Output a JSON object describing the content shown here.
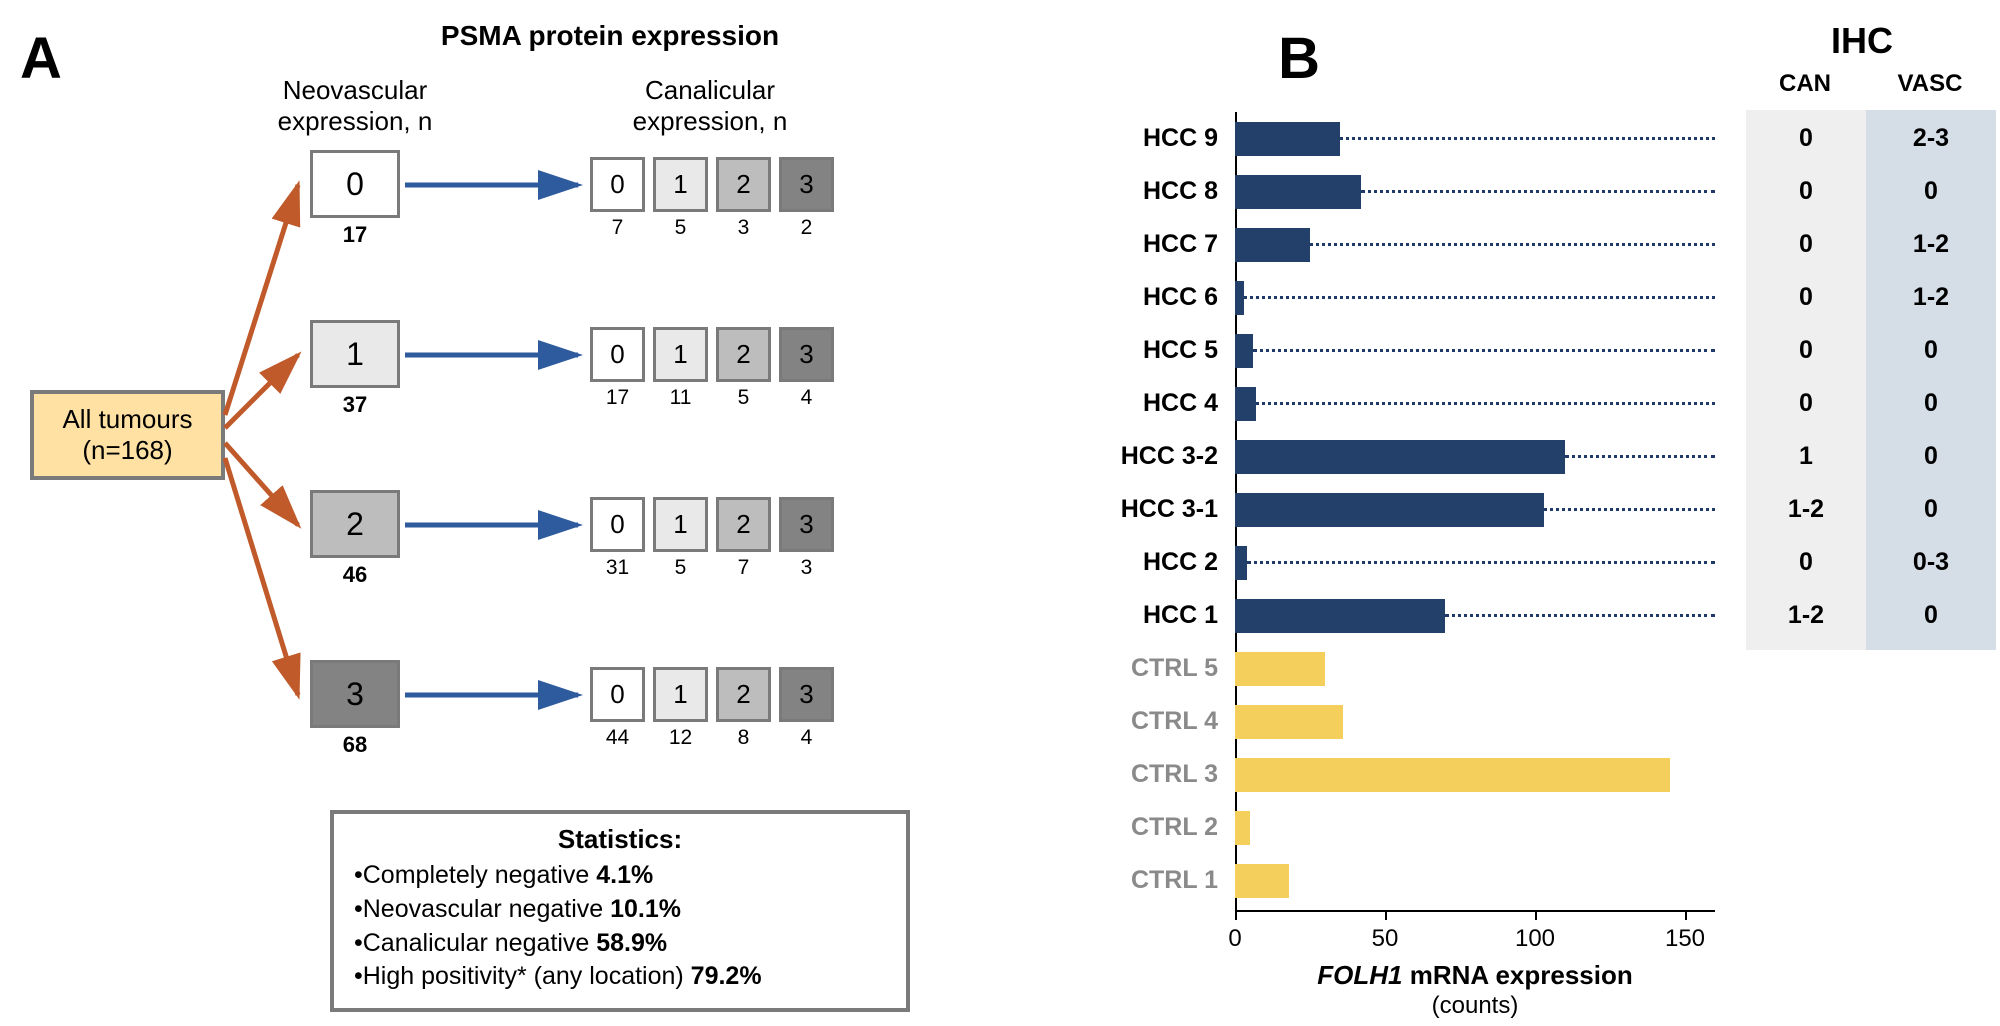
{
  "panelA": {
    "label": "A",
    "title": "PSMA protein expression",
    "neovascular_label": "Neovascular\nexpression, n",
    "canalicular_label": "Canalicular\nexpression, n",
    "root": {
      "line1": "All tumours",
      "line2": "(n=168)"
    },
    "score_colors": [
      "#ffffff",
      "#e9e9e9",
      "#bdbdbd",
      "#838383"
    ],
    "neo_groups": [
      {
        "score": "0",
        "n": "17",
        "can_counts": [
          "7",
          "5",
          "3",
          "2"
        ]
      },
      {
        "score": "1",
        "n": "37",
        "can_counts": [
          "17",
          "11",
          "5",
          "4"
        ]
      },
      {
        "score": "2",
        "n": "46",
        "can_counts": [
          "31",
          "5",
          "7",
          "3"
        ]
      },
      {
        "score": "3",
        "n": "68",
        "can_counts": [
          "44",
          "12",
          "8",
          "4"
        ]
      }
    ],
    "arrow_colors": {
      "root_to_neo": "#c05a2a",
      "neo_to_can": "#2e5a9e"
    },
    "stats": {
      "title": "Statistics:",
      "lines": [
        {
          "text": "Completely negative ",
          "value": "4.1%"
        },
        {
          "text": "Neovascular negative ",
          "value": "10.1%"
        },
        {
          "text": "Canalicular negative ",
          "value": "58.9%"
        },
        {
          "text": "High positivity* (any location) ",
          "value": "79.2%"
        }
      ]
    }
  },
  "panelB": {
    "label": "B",
    "ihc_title": "IHC",
    "ihc_cols": {
      "can": "CAN",
      "vasc": "VASC"
    },
    "x_axis": {
      "min": 0,
      "max": 160,
      "ticks": [
        0,
        50,
        100,
        150
      ],
      "label": "FOLH1 mRNA expression",
      "sublabel": "(counts)"
    },
    "bar_colors": {
      "hcc": "#23406b",
      "ctrl": "#f4cf5c"
    },
    "rows": [
      {
        "name": "HCC 9",
        "value": 35,
        "type": "hcc",
        "can": "0",
        "vasc": "2-3"
      },
      {
        "name": "HCC 8",
        "value": 42,
        "type": "hcc",
        "can": "0",
        "vasc": "0"
      },
      {
        "name": "HCC 7",
        "value": 25,
        "type": "hcc",
        "can": "0",
        "vasc": "1-2"
      },
      {
        "name": "HCC 6",
        "value": 3,
        "type": "hcc",
        "can": "0",
        "vasc": "1-2"
      },
      {
        "name": "HCC 5",
        "value": 6,
        "type": "hcc",
        "can": "0",
        "vasc": "0"
      },
      {
        "name": "HCC 4",
        "value": 7,
        "type": "hcc",
        "can": "0",
        "vasc": "0"
      },
      {
        "name": "HCC 3-2",
        "value": 110,
        "type": "hcc",
        "can": "1",
        "vasc": "0"
      },
      {
        "name": "HCC 3-1",
        "value": 103,
        "type": "hcc",
        "can": "1-2",
        "vasc": "0"
      },
      {
        "name": "HCC 2",
        "value": 4,
        "type": "hcc",
        "can": "0",
        "vasc": "0-3"
      },
      {
        "name": "HCC 1",
        "value": 70,
        "type": "hcc",
        "can": "1-2",
        "vasc": "0"
      },
      {
        "name": "CTRL 5",
        "value": 30,
        "type": "ctrl"
      },
      {
        "name": "CTRL 4",
        "value": 36,
        "type": "ctrl"
      },
      {
        "name": "CTRL 3",
        "value": 145,
        "type": "ctrl"
      },
      {
        "name": "CTRL 2",
        "value": 5,
        "type": "ctrl"
      },
      {
        "name": "CTRL 1",
        "value": 18,
        "type": "ctrl"
      }
    ]
  }
}
